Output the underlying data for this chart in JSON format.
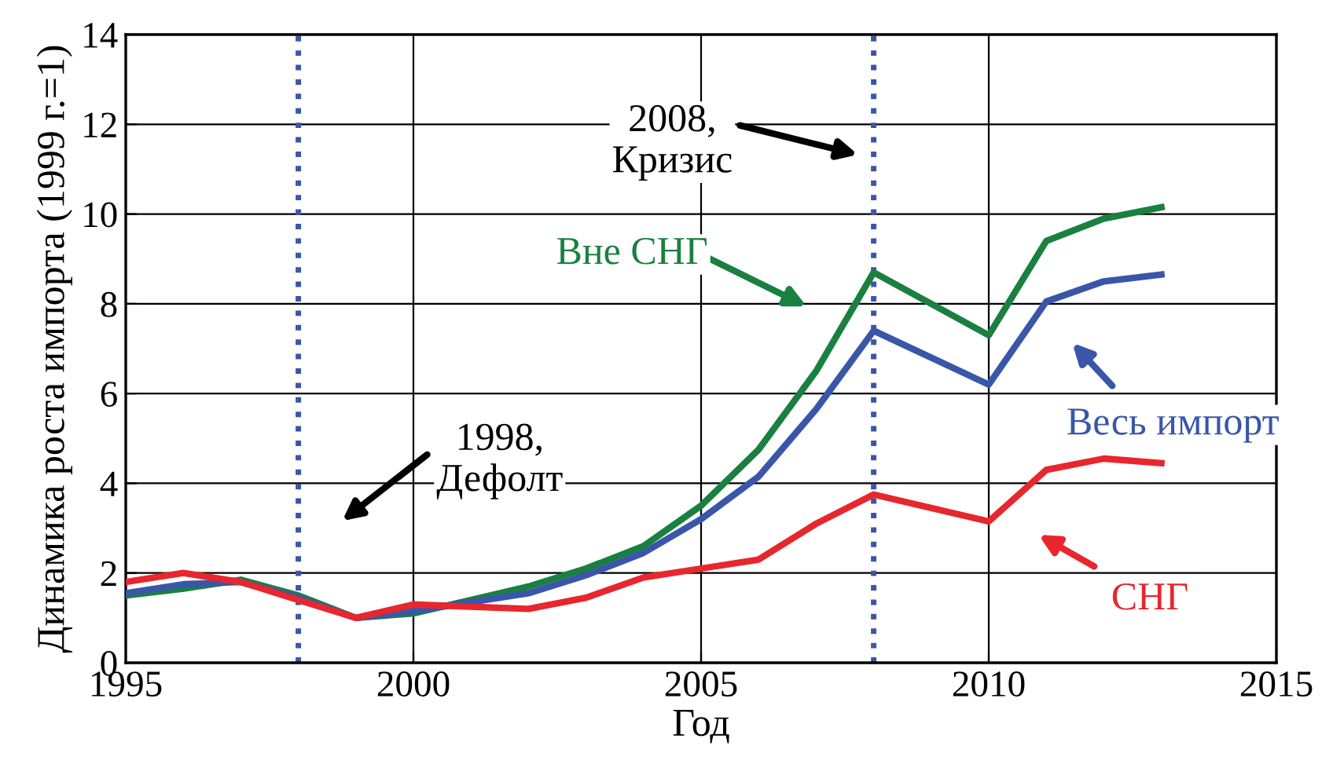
{
  "chart_data": {
    "type": "line",
    "xlabel": "Год",
    "ylabel": "Динамика роста импорта (1999 г.=1)",
    "x": [
      1995,
      1996,
      1997,
      1998,
      1999,
      2000,
      2001,
      2002,
      2003,
      2004,
      2005,
      2006,
      2007,
      2008,
      2010,
      2011,
      2012,
      2013
    ],
    "series": [
      {
        "name": "Вне СНГ",
        "color": "#1a8040",
        "values": [
          1.5,
          1.65,
          1.85,
          1.5,
          1.0,
          1.1,
          1.4,
          1.7,
          2.1,
          2.6,
          3.5,
          4.75,
          6.5,
          8.7,
          7.3,
          9.4,
          9.9,
          10.15
        ]
      },
      {
        "name": "Весь импорт",
        "color": "#3a56a8",
        "values": [
          1.55,
          1.75,
          1.8,
          1.45,
          1.0,
          1.15,
          1.35,
          1.55,
          1.95,
          2.45,
          3.2,
          4.15,
          5.65,
          7.4,
          6.2,
          8.05,
          8.5,
          8.65
        ]
      },
      {
        "name": "СНГ",
        "color": "#e8262e",
        "values": [
          1.8,
          2.0,
          1.8,
          1.4,
          1.0,
          1.3,
          1.25,
          1.2,
          1.45,
          1.9,
          2.1,
          2.3,
          3.1,
          3.75,
          3.15,
          4.3,
          4.55,
          4.45
        ]
      }
    ],
    "xlim": [
      1995,
      2015
    ],
    "xticks": [
      1995,
      2000,
      2005,
      2010,
      2015
    ],
    "ylim": [
      0,
      14
    ],
    "yticks": [
      0,
      2,
      4,
      6,
      8,
      10,
      12,
      14
    ],
    "grid": true,
    "line_style": "solid",
    "marker": "none",
    "ref_lines": [
      {
        "axis": "x",
        "value": 1998,
        "color": "#3a56a8",
        "line_style": "dotted"
      },
      {
        "axis": "x",
        "value": 2008,
        "color": "#3a56a8",
        "line_style": "dotted"
      }
    ],
    "annotations": [
      "1998,\nДефолт",
      "2008,\nКризис"
    ]
  }
}
